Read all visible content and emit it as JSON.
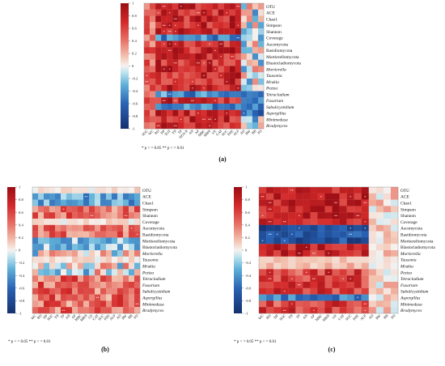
{
  "chart_data": [
    {
      "type": "heatmap",
      "panel_label": "(a)",
      "rows": [
        "OTU",
        "ACE",
        "Chao1",
        "Simpson",
        "Shannon",
        "Coverage",
        "Ascomycota",
        "Basidiomycota",
        "Mortierellomycota",
        "Blastocladiomycota",
        "Mortierella",
        "Tausonia",
        "Mrakia",
        "Peziza",
        "Tetracladium",
        "Fusarium",
        "Subulicystidium",
        "Aspergillus",
        "Minimedusa",
        "Bradymyces"
      ],
      "italic_rows": [
        "Mortierella",
        "Tausonia",
        "Mrakia",
        "Peziza",
        "Tetracladium",
        "Fusarium",
        "Subulicystidium",
        "Aspergillus",
        "Minimedusa",
        "Bradymyces"
      ],
      "columns": [
        "SOC",
        "WC",
        "BD",
        "HP",
        "TOT",
        "TN",
        "TP",
        "NO3-N",
        "AN",
        "AP",
        "MBC",
        "MBN",
        "UE",
        "CAT",
        "SUC",
        "PHE",
        "ALP",
        "AD",
        "RW",
        "BB",
        "PD"
      ],
      "colorbar": {
        "ticks": [
          1,
          0.8,
          0.6,
          0.4,
          0.2,
          0,
          -0.2,
          -0.4,
          -0.6,
          -0.8,
          -1
        ],
        "colors": {
          "positive": "#c5161d",
          "zero": "#f7f7f7",
          "negative": "#1a3d8f"
        }
      },
      "legend_text": "* p < = 0.05  ** p < = 0.01"
    },
    {
      "type": "heatmap",
      "panel_label": "(b)",
      "rows": [
        "OTU",
        "ACE",
        "Chao1",
        "Simpson",
        "Shannon",
        "Coverage",
        "Ascomycota",
        "Basidiomycota",
        "Mortierellomycota",
        "Blastocladiomycota",
        "Mortierella",
        "Tausonia",
        "Mrakia",
        "Peziza",
        "Tetracladium",
        "Fusarium",
        "Subulicystidium",
        "Aspergillus",
        "Minimedusa",
        "Bradymyces"
      ],
      "italic_rows": [
        "Mortierella",
        "Tausonia",
        "Mrakia",
        "Peziza",
        "Tetracladium",
        "Fusarium",
        "Subulicystidium",
        "Aspergillus",
        "Minimedusa",
        "Bradymyces"
      ],
      "columns": [
        "WC",
        "BD",
        "HP",
        "SOC",
        "TN",
        "TP",
        "AN",
        "AP",
        "MBC",
        "MBN",
        "UE",
        "CAT",
        "SUC",
        "PHE",
        "ALP",
        "AD",
        "RW",
        "BB",
        "PD"
      ],
      "colorbar": {
        "ticks": [
          1,
          0.8,
          0.6,
          0.4,
          0.2,
          0,
          -0.2,
          -0.4,
          -0.6,
          -0.8,
          -1
        ]
      },
      "legend_text": "* p < = 0.05  ** p < = 0.01"
    },
    {
      "type": "heatmap",
      "panel_label": "(c)",
      "rows": [
        "OTU",
        "ACE",
        "Chao1",
        "Simpson",
        "Shannon",
        "Coverage",
        "Ascomycota",
        "Basidiomycota",
        "Mortierellomycota",
        "Blastocladiomycota",
        "Mortierella",
        "Tausonia",
        "Mrakia",
        "Peziza",
        "Tetracladium",
        "Fusarium",
        "Subulicystidium",
        "Aspergillus",
        "Minimedusa",
        "Bradymyces"
      ],
      "italic_rows": [
        "Mortierella",
        "Tausonia",
        "Mrakia",
        "Peziza",
        "Tetracladium",
        "Fusarium",
        "Subulicystidium",
        "Aspergillus",
        "Minimedusa",
        "Bradymyces"
      ],
      "columns": [
        "WC",
        "BD",
        "HP",
        "SOC",
        "TN",
        "TP",
        "AN",
        "AP",
        "MBC",
        "MBN",
        "UE",
        "CAT",
        "SUC",
        "PHE",
        "ALP",
        "AD",
        "RW",
        "BB",
        "PD"
      ],
      "colorbar": {
        "ticks": [
          1,
          0.8,
          0.6,
          0.4,
          0.2,
          0,
          -0.2,
          -0.4,
          -0.6,
          -0.8,
          -1
        ]
      },
      "legend_text": "* p < = 0.05  ** p < = 0.01"
    }
  ]
}
